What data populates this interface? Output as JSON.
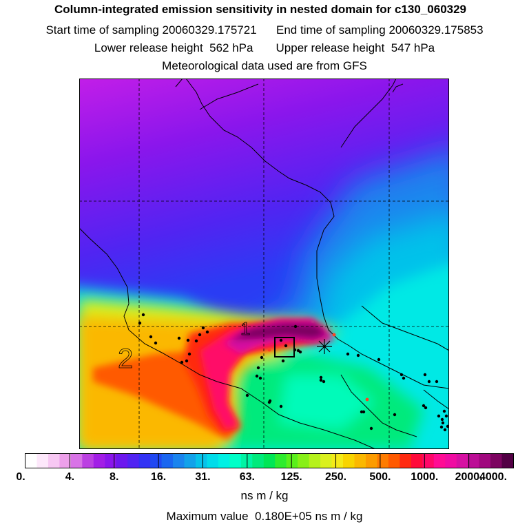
{
  "header": {
    "title": "Column-integrated emission sensitivity in nested domain for c130_060329",
    "start_label": "Start time of sampling 20060329.175721",
    "end_label": "End time of sampling 20060329.175853",
    "lower_label": "Lower release height  562 hPa",
    "upper_label": "Upper release height  547 hPa",
    "met_label": "Meteorological data used are from GFS"
  },
  "map": {
    "region_labels": [
      "1",
      "2"
    ]
  },
  "colorbar": {
    "tick_labels": [
      "0.",
      "4.",
      "8.",
      "16.",
      "31.",
      "63.",
      "125.",
      "250.",
      "500.",
      "1000.",
      "2000.",
      "4000."
    ],
    "colors": [
      "#ffffff",
      "#fde8fb",
      "#f7c8f3",
      "#eda0ea",
      "#d873e6",
      "#bb40e2",
      "#a21ee6",
      "#8a16ec",
      "#6c18ee",
      "#5124f2",
      "#3232f4",
      "#2048f2",
      "#1a66f0",
      "#1a84ee",
      "#12a2ea",
      "#06c2ea",
      "#00dcea",
      "#00f0e4",
      "#00ffc8",
      "#00f4a4",
      "#00ea7c",
      "#00e656",
      "#2eec2e",
      "#5af01c",
      "#88f018",
      "#b6f21c",
      "#daf01e",
      "#f4ea18",
      "#f8d400",
      "#fbb800",
      "#fc9c00",
      "#fe7c00",
      "#ff5a00",
      "#ff2a10",
      "#ff0a3a",
      "#ff0868",
      "#ff0c94",
      "#f00ca2",
      "#d610a2",
      "#bc0e96",
      "#a0087e",
      "#7c0460",
      "#520044"
    ],
    "units": "ns m / kg",
    "max_value": "Maximum value  0.180E+05 ns m / kg"
  }
}
